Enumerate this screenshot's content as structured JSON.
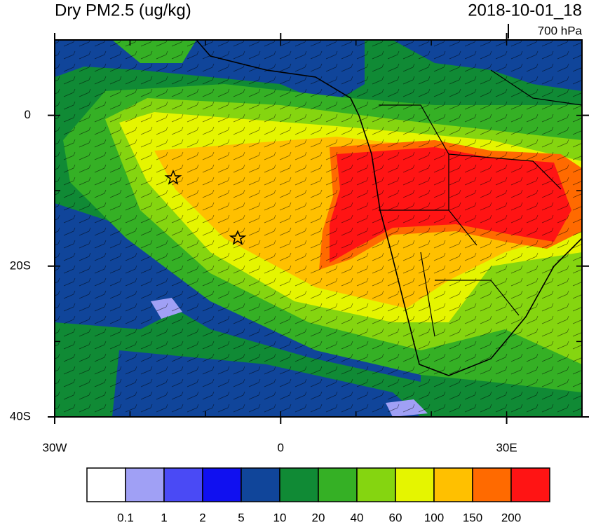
{
  "header": {
    "title": "Dry PM2.5 (ug/kg)",
    "date": "2018-10-01_18",
    "level": "700 hPa"
  },
  "map": {
    "lon_range": [
      -30,
      40
    ],
    "lat_range": [
      -40,
      10
    ],
    "lat_ticks": [
      {
        "value": 0,
        "label": "0"
      },
      {
        "value": -20,
        "label": "20S"
      },
      {
        "value": -40,
        "label": "40S"
      }
    ],
    "lon_ticks": [
      {
        "value": -30,
        "label": "30W"
      },
      {
        "value": 0,
        "label": "0"
      },
      {
        "value": 30,
        "label": "30E"
      }
    ]
  },
  "colorbar": {
    "levels": [
      0.1,
      1,
      2,
      5,
      10,
      20,
      40,
      60,
      100,
      150,
      200
    ],
    "colors": [
      "#ffffff",
      "#a0a0f5",
      "#4a4af5",
      "#1010f0",
      "#10459a",
      "#108a35",
      "#35b025",
      "#85d510",
      "#e5f500",
      "#ffc000",
      "#ff6a00",
      "#ff1414"
    ]
  }
}
